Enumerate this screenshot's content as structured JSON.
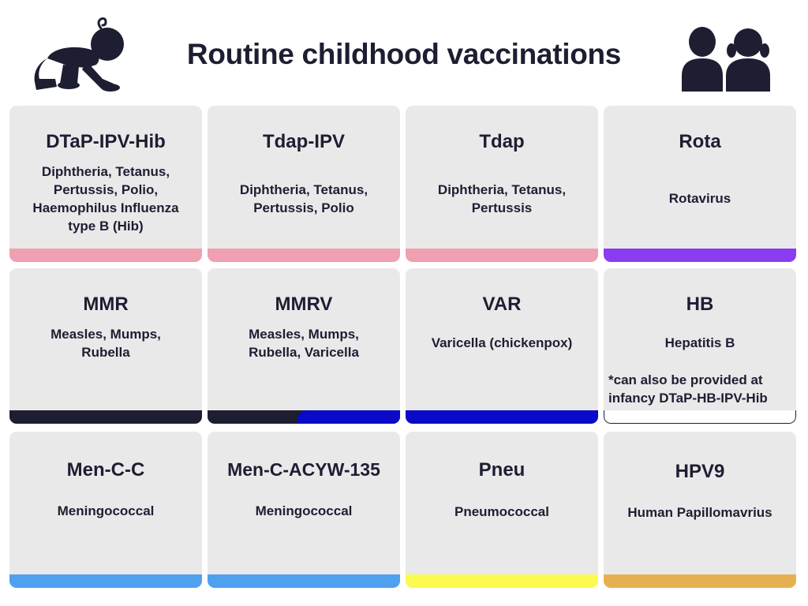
{
  "title": "Routine childhood vaccinations",
  "icons": {
    "left": "crawling-baby-icon",
    "right": "two-children-icon"
  },
  "colors": {
    "card_background": "#e9e9ea",
    "text": "#1e1e32",
    "pink": "#f0a0b0",
    "purple": "#8a3cf0",
    "navy": "#1e1e32",
    "blue": "#0a0ac8",
    "light_blue": "#50a0f0",
    "yellow": "#fafa50",
    "gold": "#e6b050"
  },
  "vaccines": [
    {
      "code": "DTaP-IPV-Hib",
      "description": "Diphtheria, Tetanus, Pertussis, Polio, Haemophilus Influenza type B (Hib)",
      "bar": "pink"
    },
    {
      "code": "Tdap-IPV",
      "description": "Diphtheria, Tetanus, Pertussis, Polio",
      "bar": "pink"
    },
    {
      "code": "Tdap",
      "description": "Diphtheria, Tetanus, Pertussis",
      "bar": "pink"
    },
    {
      "code": "Rota",
      "description": "Rotavirus",
      "bar": "purple"
    },
    {
      "code": "MMR",
      "description": "Measles, Mumps, Rubella",
      "bar": "navy"
    },
    {
      "code": "MMRV",
      "description": "Measles, Mumps, Rubella, Varicella",
      "bar": "navy+blue"
    },
    {
      "code": "VAR",
      "description": "Varicella (chickenpox)",
      "bar": "blue"
    },
    {
      "code": "HB",
      "description": "Hepatitis B",
      "note": "*can also be provided at infancy DTaP-HB-IPV-Hib",
      "bar": "outlined"
    },
    {
      "code": "Men-C-C",
      "description": "Meningococcal",
      "bar": "light_blue"
    },
    {
      "code": "Men-C-ACYW-135",
      "description": "Meningococcal",
      "bar": "light_blue"
    },
    {
      "code": "Pneu",
      "description": "Pneumococcal",
      "bar": "yellow"
    },
    {
      "code": "HPV9",
      "description": "Human Papillomavrius",
      "bar": "gold"
    }
  ]
}
